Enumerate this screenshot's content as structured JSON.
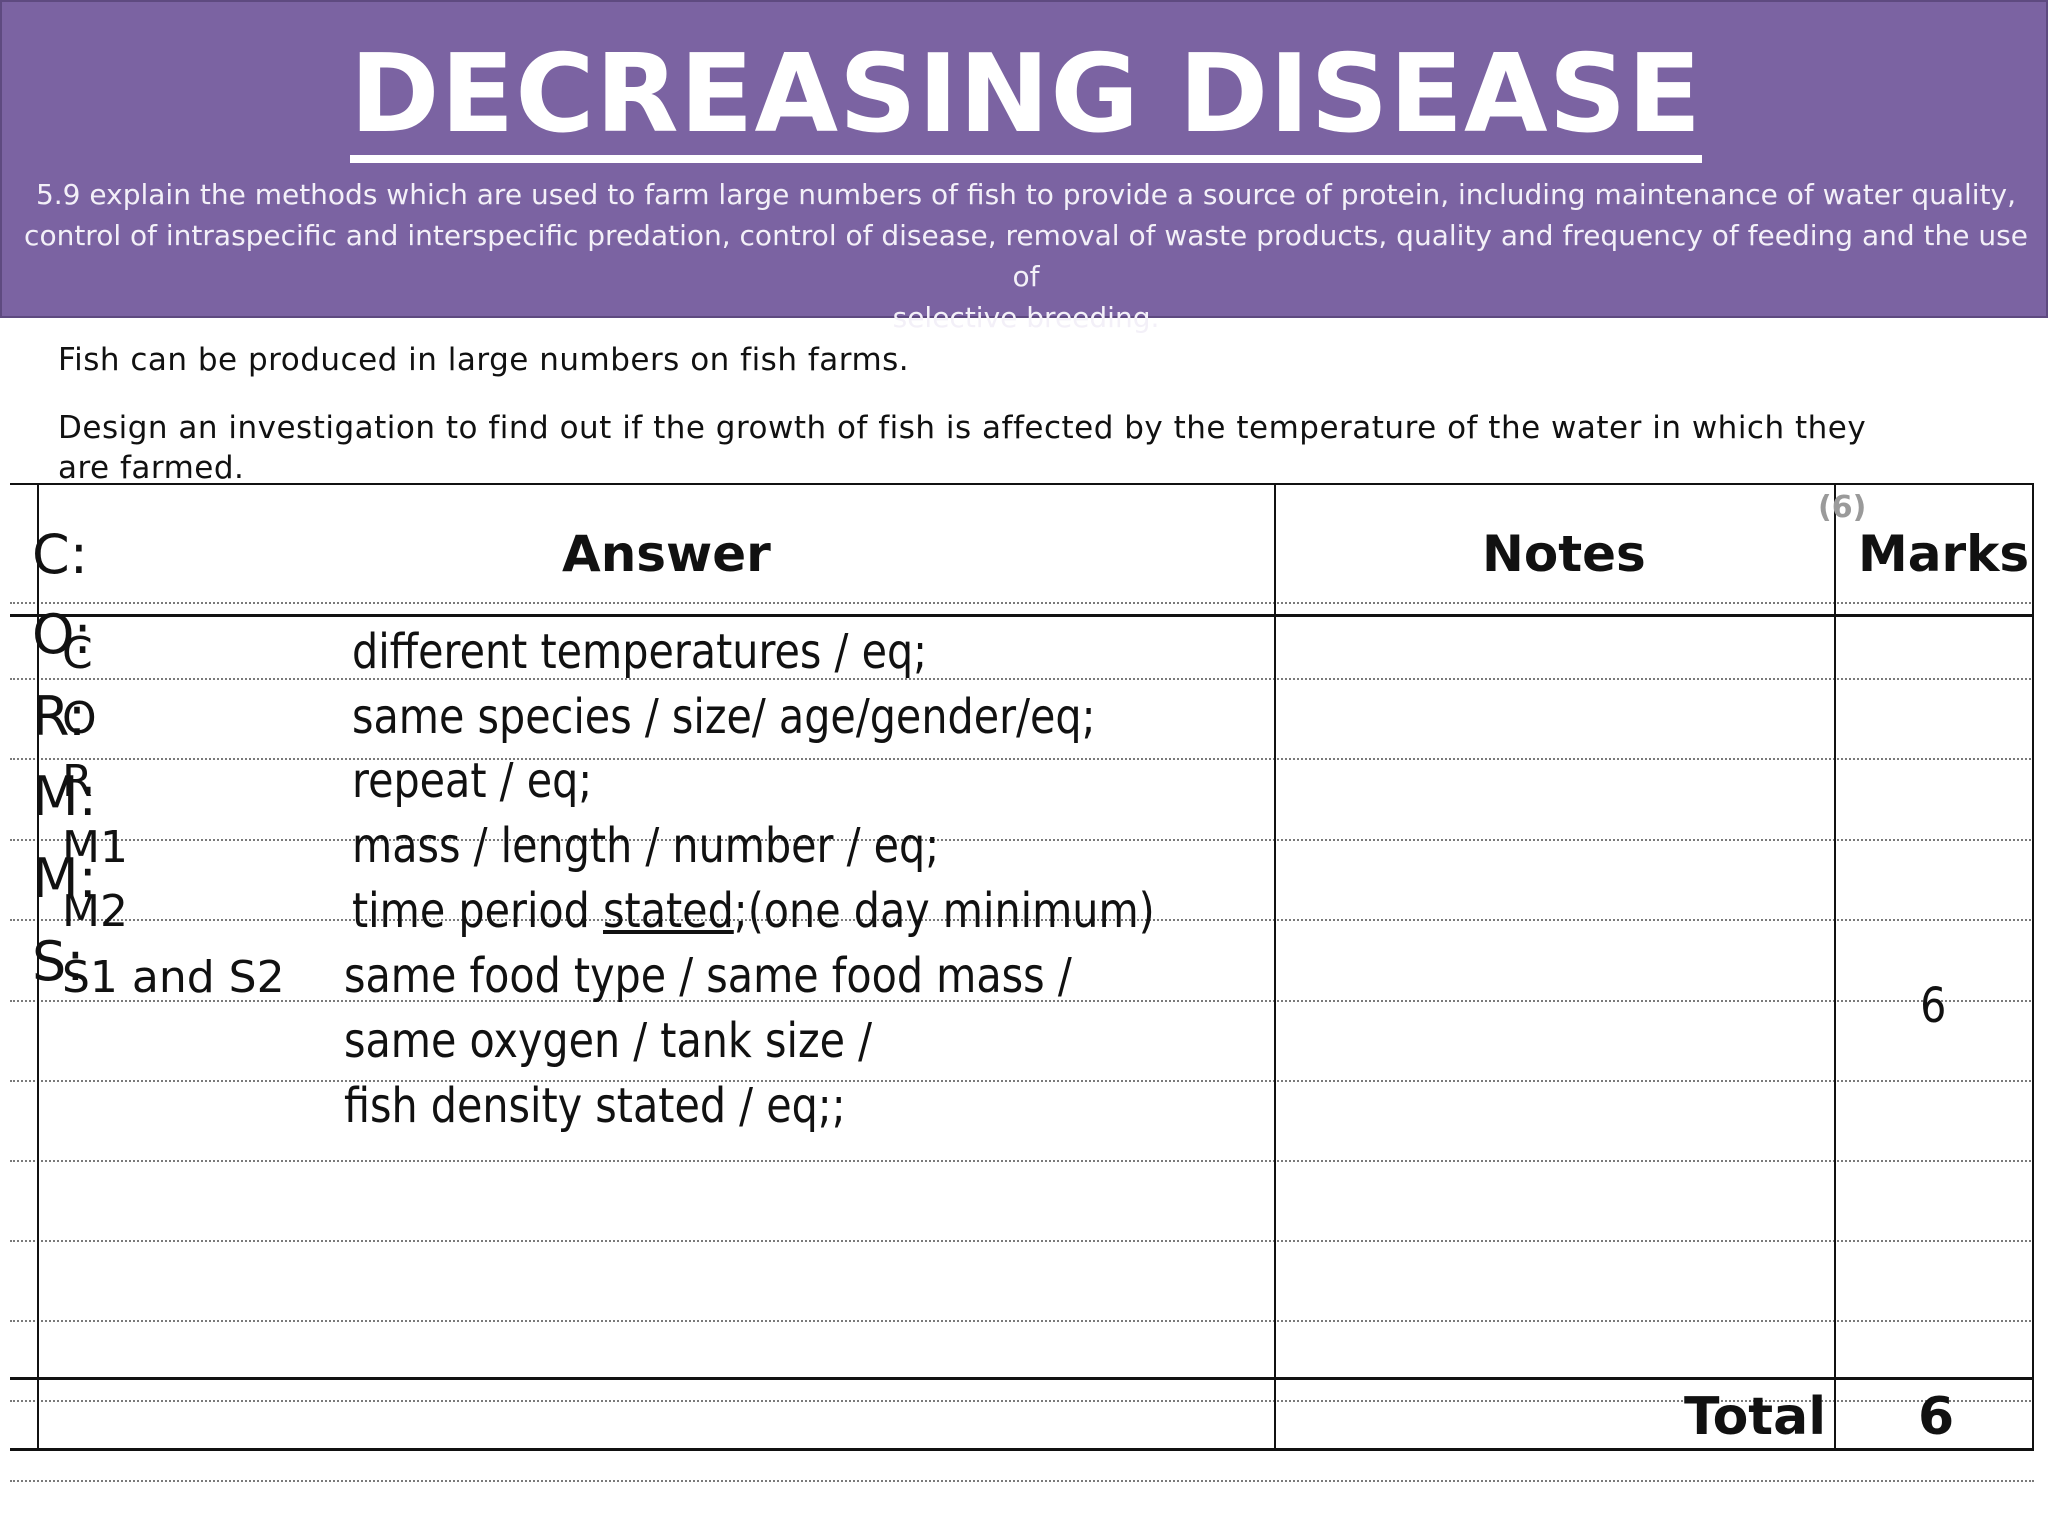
{
  "header": {
    "title": "DECREASING DISEASE",
    "spec_line1": "5.9 explain the methods which are used to farm large numbers of fish to provide a source of protein, including maintenance of water quality,",
    "spec_line2": "control of intraspecific and interspecific predation, control of disease, removal of waste products, quality and frequency of feeding and the use of",
    "spec_line3": "selective breeding."
  },
  "question": {
    "line1": "Fish can be produced in large numbers on fish farms.",
    "line2": "Design an investigation to find out if the growth of fish is affected by the temperature of the water in which they are farmed.",
    "marks": "(6)"
  },
  "table": {
    "headers": {
      "answer": "Answer",
      "notes": "Notes",
      "marks": "Marks"
    },
    "overlay_letters": [
      "C:",
      "O:",
      "R:",
      "M:",
      "M:",
      "S:"
    ],
    "codes": [
      "C",
      "O",
      "R",
      "M1",
      "M2",
      "S1 and S2"
    ],
    "answers": [
      "different temperatures / eq;",
      "same species / size/ age/gender/eq;",
      "repeat / eq;",
      "mass / length / number / eq;",
      "time period ",
      "same food type / same food mass /",
      "same oxygen / tank size /",
      "fish density stated / eq;;"
    ],
    "answer_m2_underlined": "stated",
    "answer_m2_tail": ";(one day minimum)",
    "row_mark": "6",
    "total_label": "Total",
    "total_value": "6"
  }
}
